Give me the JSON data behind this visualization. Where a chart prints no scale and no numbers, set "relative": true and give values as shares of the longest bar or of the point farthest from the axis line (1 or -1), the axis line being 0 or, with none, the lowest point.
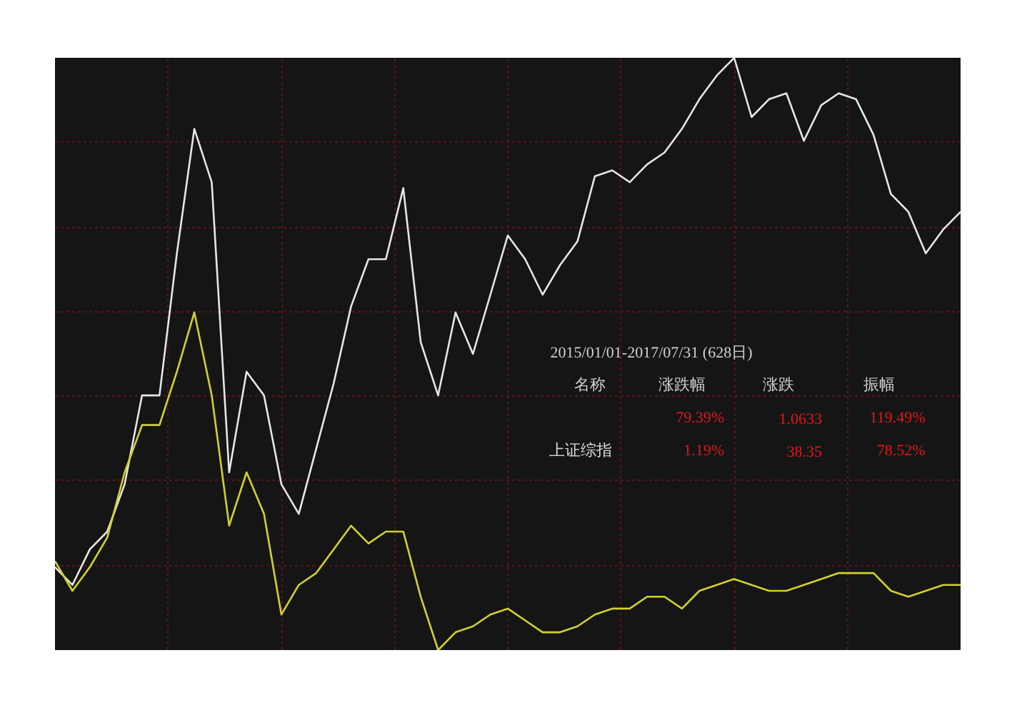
{
  "chart_data": {
    "type": "line",
    "relative": true,
    "grid": true,
    "line_style": "solid",
    "marker": "none",
    "categories": [
      null,
      null,
      null,
      null,
      null,
      null,
      null,
      null,
      null,
      null,
      null,
      null,
      null,
      null,
      null,
      null,
      null,
      null,
      null,
      null,
      null,
      null,
      null,
      null,
      null,
      null,
      null,
      null,
      null,
      null,
      null,
      null,
      null,
      null,
      null,
      null,
      null,
      null,
      null,
      null,
      null,
      null,
      null,
      null,
      null,
      null,
      null,
      null,
      null,
      null,
      null,
      null,
      null
    ],
    "series": [
      {
        "color": "#e6e6e6",
        "values": [
          0.14,
          0.11,
          0.17,
          0.2,
          0.28,
          0.43,
          0.43,
          0.67,
          0.88,
          0.79,
          0.3,
          0.47,
          0.43,
          0.28,
          0.23,
          0.34,
          0.45,
          0.58,
          0.66,
          0.66,
          0.78,
          0.52,
          0.43,
          0.57,
          0.5,
          0.6,
          0.7,
          0.66,
          0.6,
          0.65,
          0.69,
          0.8,
          0.81,
          0.79,
          0.82,
          0.84,
          0.88,
          0.93,
          0.97,
          1,
          0.9,
          0.93,
          0.94,
          0.86,
          0.92,
          0.94,
          0.93,
          0.87,
          0.77,
          0.74,
          0.67,
          0.71,
          0.74
        ]
      },
      {
        "color": "#d2d22a",
        "values": [
          0.15,
          0.1,
          0.14,
          0.19,
          0.3,
          0.38,
          0.38,
          0.47,
          0.57,
          0.43,
          0.21,
          0.3,
          0.23,
          0.06,
          0.11,
          0.13,
          0.17,
          0.21,
          0.18,
          0.2,
          0.2,
          0.09,
          0,
          0.03,
          0.04,
          0.06,
          0.07,
          0.05,
          0.03,
          0.03,
          0.04,
          0.06,
          0.07,
          0.07,
          0.09,
          0.09,
          0.07,
          0.1,
          0.11,
          0.12,
          0.11,
          0.1,
          0.1,
          0.11,
          0.12,
          0.13,
          0.13,
          0.13,
          0.1,
          0.09,
          0.1,
          0.11,
          0.11
        ]
      }
    ],
    "annotations": [
      "2015/01/01-2017/07/31 (628日)",
      "名称",
      "涨跌幅",
      "涨跌",
      "振幅",
      "79.39%",
      "1.0633",
      "119.49%",
      "上证综指",
      "1.19%",
      "38.35",
      "78.52%"
    ]
  }
}
